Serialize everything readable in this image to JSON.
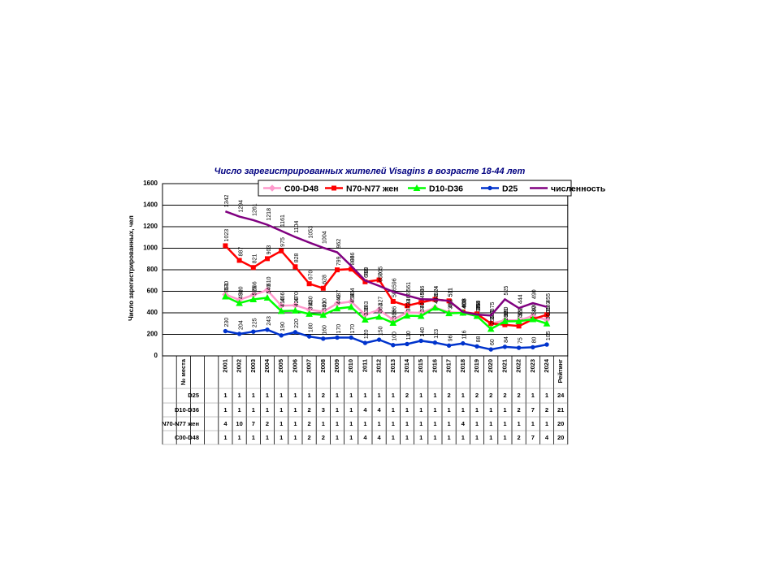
{
  "chart_data": {
    "type": "line",
    "title": "Число зарегистрированных жителей Visagins в возрасте 18-44 лет",
    "y_label": "Число зарегистрированных, чел",
    "categories": [
      null,
      "№ места",
      null,
      null,
      "2001",
      "2002",
      "2003",
      "2004",
      "2005",
      "2006",
      "2007",
      "2008",
      "2009",
      "2010",
      "2011",
      "2012",
      "2013",
      "2014",
      "2015",
      "2016",
      "2017",
      "2018",
      "2019",
      "2020",
      "2021",
      "2022",
      "2023",
      "2024",
      "Рейтинг"
    ],
    "ylim": [
      0,
      1600
    ],
    "yticks": [
      0,
      200,
      400,
      600,
      800,
      1000,
      1200,
      1400,
      1600
    ],
    "grid": true,
    "series": [
      {
        "name": "C00-D48",
        "color": "#ff99cc",
        "marker": "diamond",
        "values": [
          null,
          null,
          null,
          null,
          570,
          520,
          566,
          610,
          466,
          470,
          430,
          410,
          487,
          504,
          383,
          427,
          336,
          403,
          400,
          448,
          406,
          400,
          384,
          300,
          330,
          330,
          370,
          335,
          null
        ]
      },
      {
        "name": "N70-N77 жен",
        "color": "#ff0000",
        "marker": "square",
        "values": [
          null,
          null,
          null,
          null,
          1023,
          887,
          821,
          903,
          975,
          828,
          670,
          628,
          799,
          806,
          688,
          705,
          506,
          466,
          496,
          524,
          511,
          408,
          390,
          301,
          289,
          277,
          340,
          383,
          null
        ]
      },
      {
        "name": "D10-D36",
        "color": "#00ff00",
        "marker": "triangle",
        "values": [
          null,
          null,
          null,
          null,
          551,
          490,
          525,
          540,
          416,
          420,
          390,
          380,
          440,
          454,
          336,
          362,
          306,
          373,
          370,
          447,
          395,
          400,
          370,
          250,
          321,
          322,
          340,
          300,
          null
        ]
      },
      {
        "name": "D25",
        "color": "#0033cc",
        "marker": "circle",
        "values": [
          null,
          null,
          null,
          null,
          230,
          204,
          225,
          243,
          190,
          220,
          180,
          160,
          170,
          170,
          120,
          150,
          100,
          110,
          140,
          123,
          96,
          116,
          88,
          60,
          84,
          75,
          80,
          105,
          null
        ]
      },
      {
        "name": "численность",
        "color": "#800080",
        "marker": "none",
        "values": [
          null,
          null,
          null,
          null,
          1342,
          1294,
          1261,
          1218,
          1161,
          1104,
          1053,
          1004,
          962,
          836,
          700,
          650,
          596,
          561,
          526,
          524,
          511,
          408,
          384,
          375,
          525,
          444,
          490,
          455,
          null
        ]
      }
    ]
  },
  "table": {
    "rows": [
      {
        "label": "D25",
        "cells": [
          1,
          1,
          1,
          1,
          1,
          1,
          1,
          2,
          1,
          1,
          1,
          1,
          1,
          2,
          1,
          1,
          2,
          1,
          2,
          2,
          2,
          2,
          1,
          1
        ],
        "rating": 24
      },
      {
        "label": "D10-D36",
        "cells": [
          1,
          1,
          1,
          1,
          1,
          1,
          2,
          3,
          1,
          1,
          4,
          4,
          1,
          1,
          1,
          1,
          1,
          1,
          1,
          1,
          1,
          2,
          7,
          2
        ],
        "rating": 21
      },
      {
        "label": "N70-N77 жен",
        "cells": [
          4,
          10,
          7,
          2,
          1,
          1,
          2,
          1,
          1,
          1,
          1,
          1,
          1,
          1,
          1,
          1,
          1,
          4,
          1,
          1,
          1,
          1,
          1,
          1
        ],
        "rating": 20
      },
      {
        "label": "C00-D48",
        "cells": [
          1,
          1,
          1,
          1,
          1,
          1,
          2,
          2,
          1,
          1,
          4,
          4,
          1,
          1,
          1,
          1,
          1,
          1,
          1,
          1,
          1,
          2,
          7,
          4
        ],
        "rating": 20
      }
    ]
  }
}
